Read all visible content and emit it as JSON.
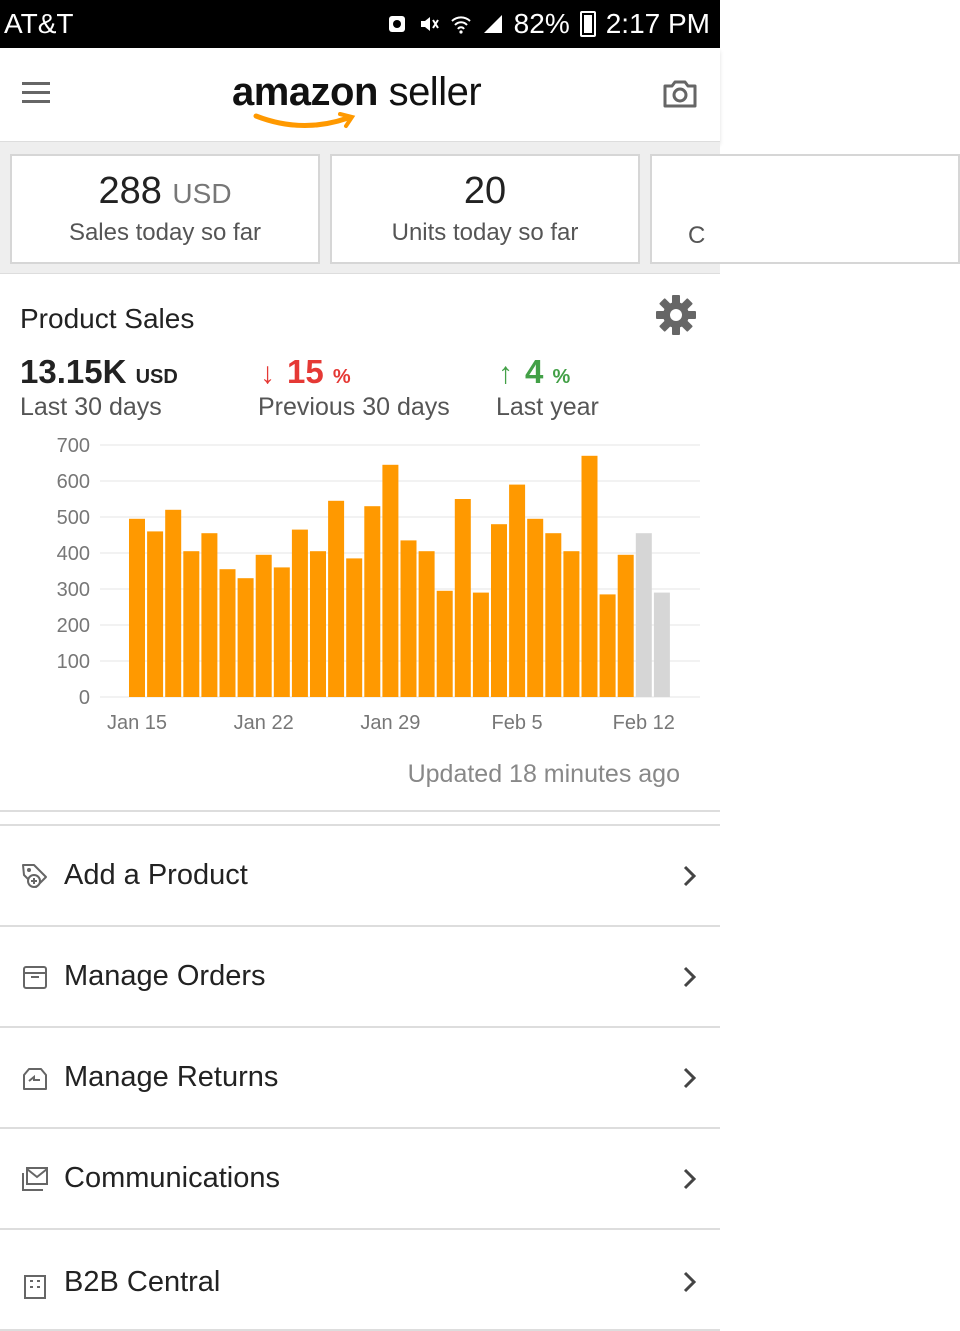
{
  "status_bar": {
    "carrier": "AT&T",
    "battery": "82%",
    "time": "2:17 PM"
  },
  "header": {
    "logo_brand": "amazon",
    "logo_suffix": "seller"
  },
  "kpis": [
    {
      "value": "288",
      "unit": "USD",
      "label": "Sales today so far"
    },
    {
      "value": "20",
      "unit": "",
      "label": "Units today so far"
    },
    {
      "value": "",
      "unit": "",
      "label": "C"
    }
  ],
  "product_sales": {
    "title": "Product Sales",
    "total_value": "13.15K",
    "total_unit": "USD",
    "total_label": "Last 30 days",
    "prev_change": "15",
    "prev_pct": "%",
    "prev_label": "Previous 30 days",
    "year_change": "4",
    "year_pct": "%",
    "year_label": "Last year",
    "updated": "Updated 18 minutes ago"
  },
  "chart_data": {
    "type": "bar",
    "ylim": [
      0,
      700
    ],
    "yticks": [
      0,
      100,
      200,
      300,
      400,
      500,
      600,
      700
    ],
    "xtick_labels": [
      "Jan 15",
      "Jan 22",
      "Jan 29",
      "Feb 5",
      "Feb 12"
    ],
    "xtick_indices": [
      0,
      7,
      14,
      21,
      28
    ],
    "values": [
      495,
      460,
      520,
      405,
      455,
      355,
      330,
      395,
      360,
      465,
      405,
      545,
      385,
      530,
      645,
      435,
      405,
      295,
      550,
      290,
      480,
      590,
      495,
      455,
      405,
      670,
      285,
      395,
      455,
      290
    ],
    "highlight_color": "#ff9900",
    "muted_color": "#d6d6d6",
    "muted_from_index": 28,
    "grid": true
  },
  "menu": [
    {
      "label": "Add a Product",
      "icon": "tag-plus-icon"
    },
    {
      "label": "Manage Orders",
      "icon": "box-icon"
    },
    {
      "label": "Manage Returns",
      "icon": "return-box-icon"
    },
    {
      "label": "Communications",
      "icon": "envelope-icon"
    },
    {
      "label": "B2B Central",
      "icon": "building-icon"
    }
  ]
}
